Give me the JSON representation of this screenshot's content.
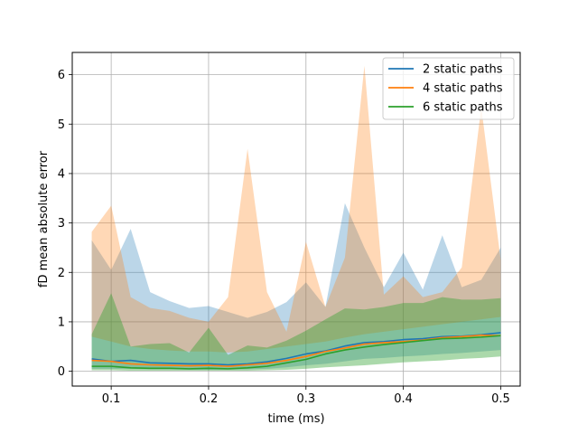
{
  "chart_data": {
    "type": "line",
    "title": "",
    "xlabel": "time (ms)",
    "ylabel": "fD mean absolute error",
    "xlim": [
      0.06,
      0.52
    ],
    "ylim": [
      -0.3,
      6.45
    ],
    "xticks": [
      0.1,
      0.2,
      0.3,
      0.4,
      0.5
    ],
    "xtick_labels": [
      "0.1",
      "0.2",
      "0.3",
      "0.4",
      "0.5"
    ],
    "yticks": [
      0,
      1,
      2,
      3,
      4,
      5,
      6
    ],
    "ytick_labels": [
      "0",
      "1",
      "2",
      "3",
      "4",
      "5",
      "6"
    ],
    "grid": true,
    "legend_position": "top-right",
    "x": [
      0.08,
      0.1,
      0.12,
      0.14,
      0.16,
      0.18,
      0.2,
      0.22,
      0.24,
      0.26,
      0.28,
      0.3,
      0.32,
      0.34,
      0.36,
      0.38,
      0.4,
      0.42,
      0.44,
      0.46,
      0.48,
      0.5
    ],
    "series": [
      {
        "name": "2 static paths",
        "color": "#1f77b4",
        "band_alpha": 0.3,
        "mean": [
          0.25,
          0.2,
          0.22,
          0.17,
          0.16,
          0.15,
          0.15,
          0.13,
          0.15,
          0.19,
          0.26,
          0.35,
          0.41,
          0.51,
          0.58,
          0.6,
          0.64,
          0.66,
          0.7,
          0.71,
          0.74,
          0.78
        ],
        "upper": [
          2.65,
          2.05,
          2.88,
          1.6,
          1.42,
          1.28,
          1.32,
          1.2,
          1.08,
          1.2,
          1.4,
          1.8,
          1.3,
          3.4,
          2.5,
          1.7,
          2.4,
          1.65,
          2.75,
          1.7,
          1.85,
          2.5
        ],
        "lower": [
          0.05,
          0.05,
          0.05,
          0.04,
          0.04,
          0.03,
          0.03,
          0.03,
          0.04,
          0.05,
          0.08,
          0.12,
          0.15,
          0.2,
          0.25,
          0.27,
          0.3,
          0.32,
          0.35,
          0.37,
          0.4,
          0.43
        ]
      },
      {
        "name": "4 static paths",
        "color": "#ff7f0e",
        "band_alpha": 0.3,
        "mean": [
          0.22,
          0.2,
          0.15,
          0.13,
          0.12,
          0.11,
          0.12,
          0.1,
          0.13,
          0.16,
          0.22,
          0.3,
          0.4,
          0.47,
          0.55,
          0.58,
          0.6,
          0.63,
          0.68,
          0.7,
          0.73,
          0.72
        ],
        "upper": [
          2.82,
          3.35,
          1.5,
          1.28,
          1.22,
          1.08,
          1.0,
          1.5,
          4.5,
          1.6,
          0.8,
          2.62,
          1.3,
          2.3,
          6.18,
          1.55,
          1.92,
          1.5,
          1.6,
          2.1,
          5.35,
          2.25
        ],
        "lower": [
          0.7,
          0.6,
          0.5,
          0.45,
          0.42,
          0.4,
          0.4,
          0.38,
          0.4,
          0.45,
          0.5,
          0.55,
          0.6,
          0.68,
          0.75,
          0.8,
          0.85,
          0.9,
          0.95,
          1.0,
          1.05,
          1.1
        ]
      },
      {
        "name": "6 static paths",
        "color": "#2ca02c",
        "band_alpha": 0.4,
        "mean": [
          0.1,
          0.1,
          0.07,
          0.06,
          0.06,
          0.05,
          0.06,
          0.05,
          0.07,
          0.1,
          0.17,
          0.24,
          0.35,
          0.43,
          0.49,
          0.54,
          0.58,
          0.62,
          0.66,
          0.67,
          0.69,
          0.72
        ],
        "upper": [
          0.75,
          1.58,
          0.5,
          0.55,
          0.57,
          0.38,
          0.88,
          0.33,
          0.52,
          0.48,
          0.62,
          0.82,
          1.05,
          1.27,
          1.25,
          1.3,
          1.38,
          1.38,
          1.5,
          1.45,
          1.45,
          1.48
        ],
        "lower": [
          0.02,
          0.02,
          0.01,
          0.01,
          0.01,
          0.01,
          0.01,
          0.01,
          0.01,
          0.02,
          0.03,
          0.05,
          0.08,
          0.1,
          0.12,
          0.15,
          0.18,
          0.2,
          0.22,
          0.25,
          0.27,
          0.3
        ]
      }
    ]
  }
}
